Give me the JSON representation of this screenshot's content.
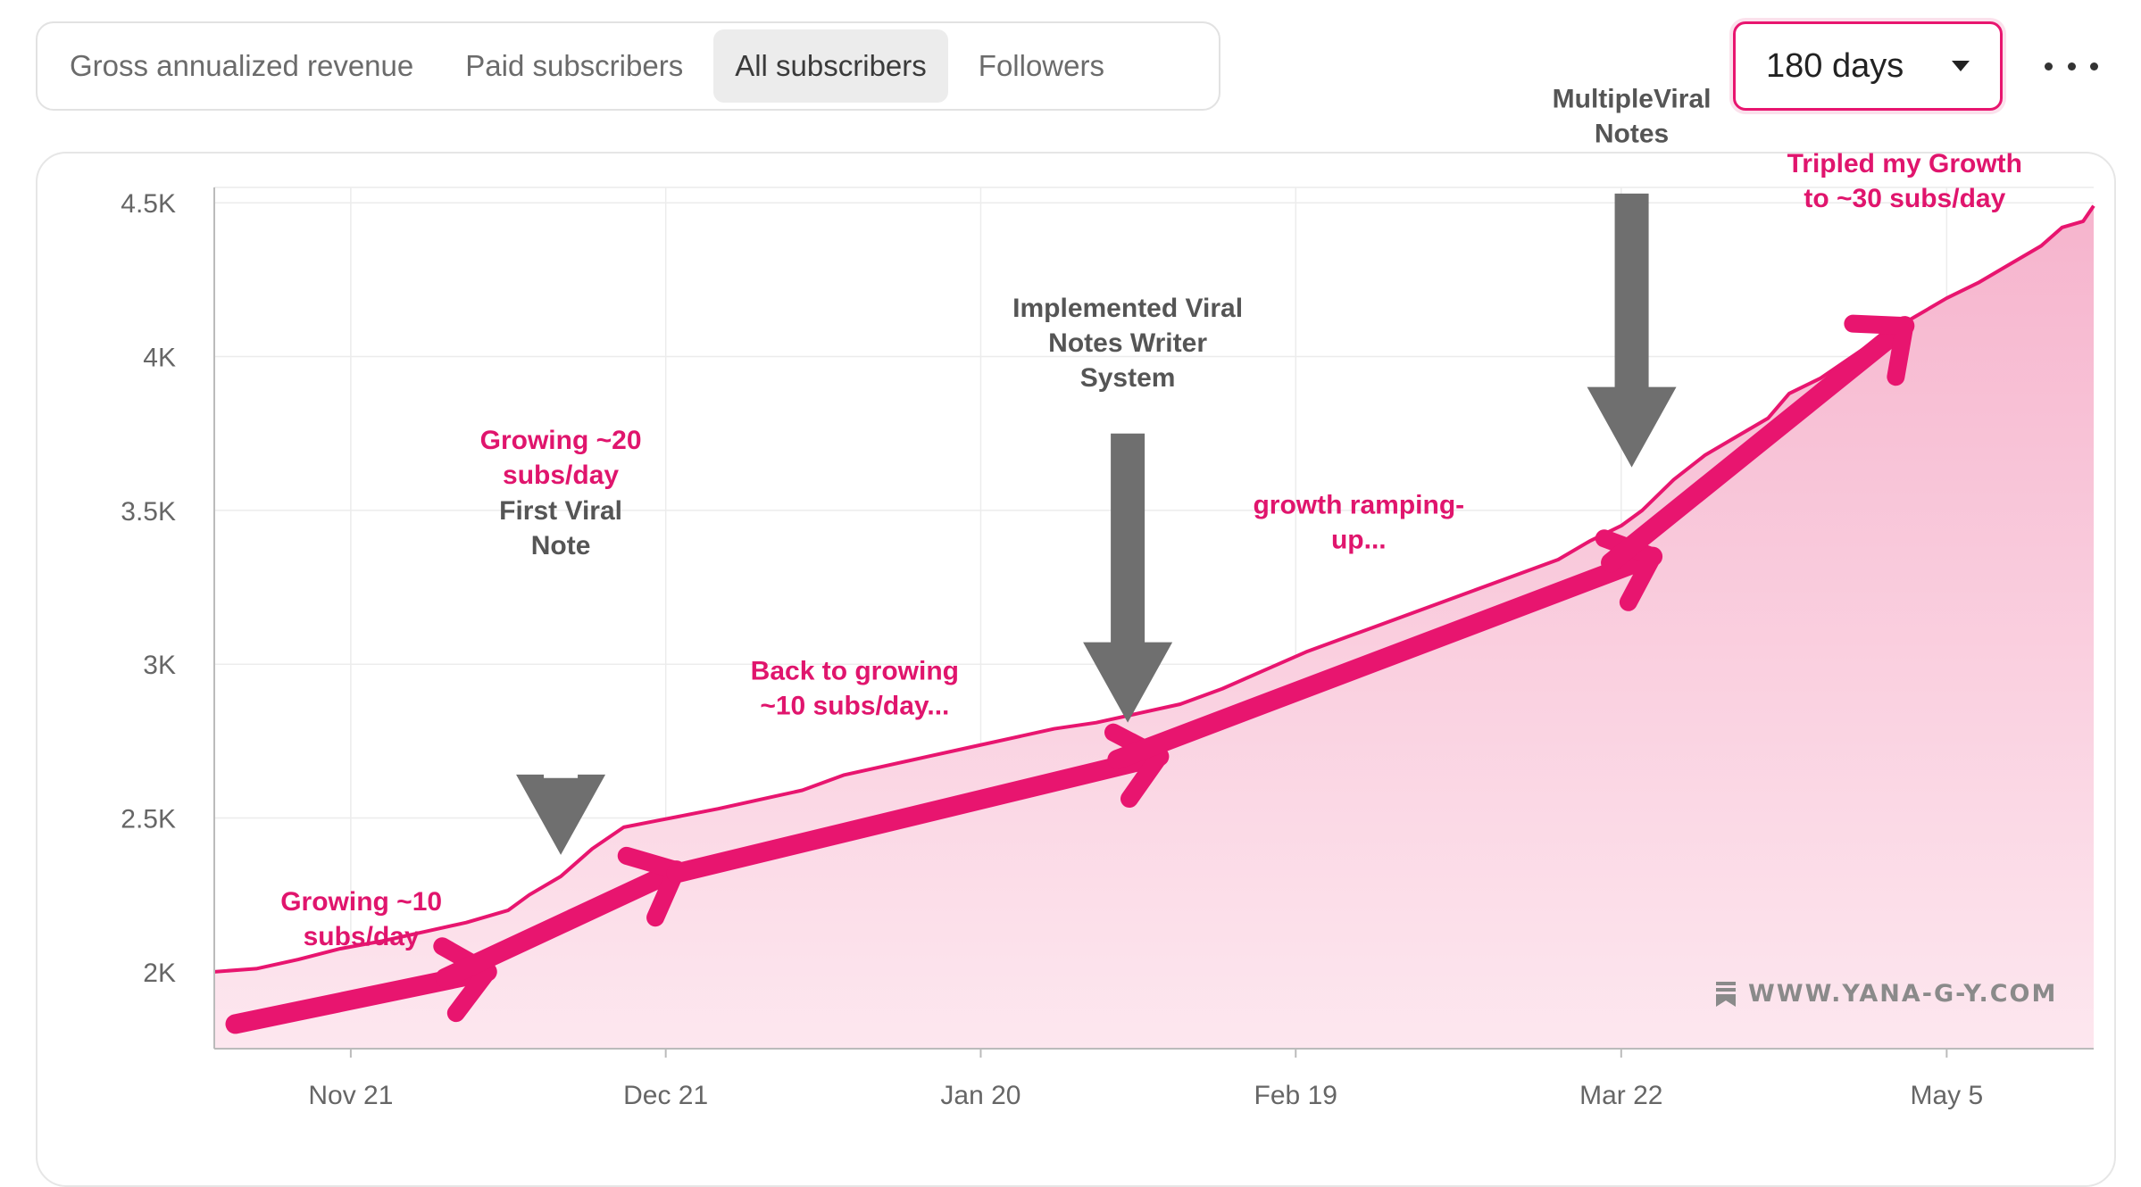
{
  "tabs": [
    {
      "label": "Gross annualized revenue",
      "active": false
    },
    {
      "label": "Paid subscribers",
      "active": false
    },
    {
      "label": "All subscribers",
      "active": true
    },
    {
      "label": "Followers",
      "active": false
    }
  ],
  "range_select": {
    "value": "180 days",
    "icon": "chevron-down-icon"
  },
  "more_menu": {
    "icon": "more-horizontal-icon"
  },
  "watermark": {
    "text": "WWW.YANA-G-Y.COM",
    "icon": "substack-bookmark-icon"
  },
  "colors": {
    "accent": "#e8156f",
    "area_fill_top": "#f6b4cd",
    "area_fill_bottom": "#fde7ef",
    "annotation_pink": "#e0156d",
    "annotation_gray": "#555555",
    "arrow_gray": "#6f6f6f",
    "gridline": "#ececec"
  },
  "chart_data": {
    "type": "area",
    "title": "",
    "xlabel": "",
    "ylabel": "",
    "xlim": [
      0,
      179
    ],
    "ylim": [
      1750,
      4550
    ],
    "grid": true,
    "x_ticks": [
      {
        "label": "Nov 21",
        "x": 13
      },
      {
        "label": "Dec 21",
        "x": 43
      },
      {
        "label": "Jan 20",
        "x": 73
      },
      {
        "label": "Feb 19",
        "x": 103
      },
      {
        "label": "Mar 22",
        "x": 134
      },
      {
        "label": "May 5",
        "x": 165
      }
    ],
    "y_ticks": [
      {
        "label": "2K",
        "value": 2000
      },
      {
        "label": "2.5K",
        "value": 2500
      },
      {
        "label": "3K",
        "value": 3000
      },
      {
        "label": "3.5K",
        "value": 3500
      },
      {
        "label": "4K",
        "value": 4000
      },
      {
        "label": "4.5K",
        "value": 4500
      }
    ],
    "series": [
      {
        "name": "",
        "points": [
          [
            0,
            2000
          ],
          [
            4,
            2010
          ],
          [
            8,
            2040
          ],
          [
            12,
            2075
          ],
          [
            16,
            2100
          ],
          [
            20,
            2130
          ],
          [
            24,
            2160
          ],
          [
            28,
            2200
          ],
          [
            30,
            2250
          ],
          [
            33,
            2310
          ],
          [
            36,
            2400
          ],
          [
            39,
            2470
          ],
          [
            42,
            2490
          ],
          [
            45,
            2510
          ],
          [
            48,
            2530
          ],
          [
            52,
            2560
          ],
          [
            56,
            2590
          ],
          [
            60,
            2640
          ],
          [
            64,
            2670
          ],
          [
            68,
            2700
          ],
          [
            72,
            2730
          ],
          [
            76,
            2760
          ],
          [
            80,
            2790
          ],
          [
            84,
            2810
          ],
          [
            88,
            2840
          ],
          [
            92,
            2870
          ],
          [
            96,
            2920
          ],
          [
            100,
            2980
          ],
          [
            104,
            3040
          ],
          [
            108,
            3090
          ],
          [
            112,
            3140
          ],
          [
            116,
            3190
          ],
          [
            120,
            3240
          ],
          [
            124,
            3290
          ],
          [
            128,
            3340
          ],
          [
            131,
            3400
          ],
          [
            134,
            3450
          ],
          [
            136,
            3500
          ],
          [
            139,
            3600
          ],
          [
            142,
            3680
          ],
          [
            145,
            3740
          ],
          [
            148,
            3800
          ],
          [
            150,
            3880
          ],
          [
            153,
            3930
          ],
          [
            156,
            4000
          ],
          [
            159,
            4070
          ],
          [
            162,
            4130
          ],
          [
            165,
            4190
          ],
          [
            168,
            4240
          ],
          [
            171,
            4300
          ],
          [
            174,
            4360
          ],
          [
            176,
            4420
          ],
          [
            178,
            4440
          ],
          [
            179,
            4490
          ]
        ]
      }
    ],
    "trend_arrows": [
      {
        "x1": 2,
        "y1": 1830,
        "x2": 26,
        "y2": 2000
      },
      {
        "x1": 22,
        "y1": 1980,
        "x2": 44,
        "y2": 2330
      },
      {
        "x1": 44,
        "y1": 2320,
        "x2": 90,
        "y2": 2700
      },
      {
        "x1": 86,
        "y1": 2690,
        "x2": 137,
        "y2": 3350
      },
      {
        "x1": 133,
        "y1": 3330,
        "x2": 161,
        "y2": 4100
      }
    ],
    "down_arrows": [
      {
        "x": 33,
        "y_top": 2630,
        "y_bottom": 2380
      },
      {
        "x": 87,
        "y_top": 3750,
        "y_bottom": 2810
      },
      {
        "x": 135,
        "y_top": 4530,
        "y_bottom": 3640
      }
    ],
    "annotations": [
      {
        "text": "Growing ~10\nsubs/day",
        "x": 14,
        "y": 2200,
        "color": "pink"
      },
      {
        "text": "Growing ~20\nsubs/day",
        "x": 33,
        "y": 3700,
        "color": "pink"
      },
      {
        "text": "First Viral\nNote",
        "x": 33,
        "y": 3470,
        "color": "gray"
      },
      {
        "text": "Back to growing\n~10 subs/day...",
        "x": 61,
        "y": 2950,
        "color": "pink"
      },
      {
        "text": "Implemented Viral\nNotes Writer\nSystem",
        "x": 87,
        "y": 4130,
        "color": "gray"
      },
      {
        "text": "growth ramping-\nup...",
        "x": 109,
        "y": 3490,
        "color": "pink"
      },
      {
        "text": "MultipleViral\nNotes",
        "x": 135,
        "y": 4810,
        "color": "gray"
      },
      {
        "text": "Tripled my Growth\nto ~30 subs/day",
        "x": 161,
        "y": 4600,
        "color": "pink"
      }
    ]
  }
}
